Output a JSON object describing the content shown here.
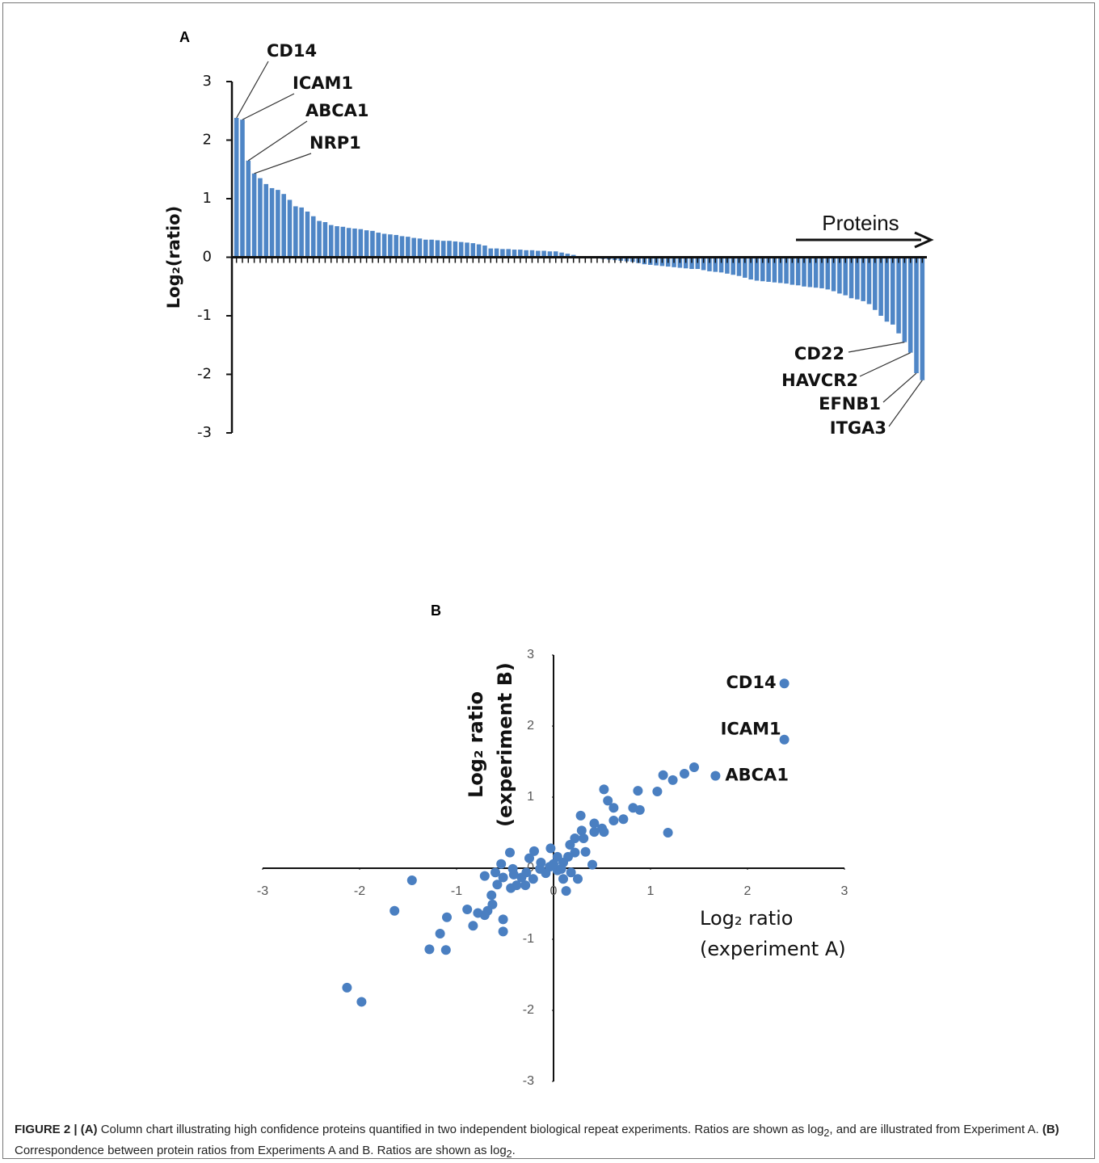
{
  "chart_data": [
    {
      "type": "bar",
      "panel": "A",
      "ylabel": "Log₂(ratio)",
      "axis_note": "Proteins",
      "color": "#4f86c6",
      "ylim": [
        -3,
        3
      ],
      "yticks": [
        -3,
        -2,
        -1,
        0,
        1,
        2,
        3
      ],
      "annotations": [
        "CD14",
        "ICAM1",
        "ABCA1",
        "NRP1",
        "CD22",
        "HAVCR2",
        "EFNB1",
        "ITGA3"
      ],
      "values": [
        2.38,
        2.35,
        1.65,
        1.43,
        1.35,
        1.25,
        1.18,
        1.15,
        1.08,
        0.98,
        0.87,
        0.85,
        0.78,
        0.7,
        0.62,
        0.6,
        0.55,
        0.53,
        0.52,
        0.5,
        0.49,
        0.48,
        0.46,
        0.45,
        0.42,
        0.4,
        0.39,
        0.38,
        0.36,
        0.35,
        0.33,
        0.32,
        0.3,
        0.3,
        0.29,
        0.28,
        0.28,
        0.27,
        0.26,
        0.25,
        0.24,
        0.22,
        0.2,
        0.15,
        0.15,
        0.14,
        0.14,
        0.13,
        0.13,
        0.12,
        0.12,
        0.11,
        0.11,
        0.1,
        0.1,
        0.08,
        0.06,
        0.04,
        0.02,
        0.01,
        -0.01,
        -0.02,
        -0.03,
        -0.04,
        -0.05,
        -0.06,
        -0.07,
        -0.08,
        -0.1,
        -0.12,
        -0.13,
        -0.14,
        -0.15,
        -0.16,
        -0.17,
        -0.18,
        -0.19,
        -0.2,
        -0.2,
        -0.22,
        -0.24,
        -0.25,
        -0.26,
        -0.28,
        -0.3,
        -0.32,
        -0.35,
        -0.38,
        -0.4,
        -0.41,
        -0.42,
        -0.43,
        -0.44,
        -0.45,
        -0.47,
        -0.48,
        -0.5,
        -0.51,
        -0.52,
        -0.53,
        -0.55,
        -0.58,
        -0.62,
        -0.65,
        -0.7,
        -0.72,
        -0.75,
        -0.8,
        -0.9,
        -1.0,
        -1.1,
        -1.15,
        -1.3,
        -1.45,
        -1.63,
        -1.98,
        -2.1
      ]
    },
    {
      "type": "scatter",
      "panel": "B",
      "color": "#4a7fc1",
      "xlabel": [
        "Log₂ ratio",
        "(experiment A)"
      ],
      "ylabel": [
        "Log₂ ratio",
        "(experiment B)"
      ],
      "xlim": [
        -3,
        3
      ],
      "ylim": [
        -3,
        3
      ],
      "xticks": [
        -3,
        -2,
        -1,
        0,
        1,
        2,
        3
      ],
      "yticks": [
        -3,
        -2,
        -1,
        0,
        1,
        2,
        3
      ],
      "annotations": [
        "CD14",
        "ICAM1",
        "ABCA1"
      ],
      "x": [
        2.38,
        2.38,
        1.67,
        1.45,
        1.35,
        1.23,
        1.13,
        1.07,
        0.87,
        0.82,
        0.89,
        1.18,
        0.52,
        0.56,
        0.62,
        0.72,
        0.62,
        0.5,
        0.52,
        0.42,
        0.42,
        0.28,
        0.29,
        0.31,
        0.22,
        0.17,
        0.33,
        0.22,
        0.15,
        0.1,
        0.4,
        0.25,
        0.13,
        0.1,
        0.04,
        -0.03,
        -0.04,
        -0.08,
        -0.13,
        -0.14,
        -0.2,
        -0.21,
        -0.28,
        -0.29,
        -0.33,
        -0.42,
        -0.41,
        -0.44,
        -0.54,
        -0.52,
        -0.58,
        -0.64,
        -0.63,
        -0.45,
        -0.71,
        -0.6,
        -0.68,
        -0.71,
        -0.78,
        -0.89,
        -0.83,
        -0.52,
        -0.52,
        -1.1,
        -1.17,
        -1.28,
        -1.11,
        -1.46,
        -1.64,
        -2.13,
        -1.98,
        0.04,
        0,
        0.08,
        0.18,
        -0.38,
        -0.25
      ],
      "y": [
        2.6,
        1.81,
        1.3,
        1.42,
        1.33,
        1.24,
        1.31,
        1.08,
        1.09,
        0.85,
        0.82,
        0.5,
        1.11,
        0.95,
        0.85,
        0.69,
        0.67,
        0.56,
        0.51,
        0.63,
        0.51,
        0.74,
        0.53,
        0.42,
        0.42,
        0.33,
        0.23,
        0.22,
        0.16,
        0.08,
        0.05,
        -0.15,
        -0.32,
        -0.15,
        -0.03,
        0.28,
        0.02,
        -0.07,
        0.08,
        -0.01,
        0.24,
        -0.15,
        -0.06,
        -0.24,
        -0.13,
        -0.01,
        -0.09,
        -0.28,
        0.06,
        -0.13,
        -0.23,
        -0.38,
        -0.51,
        0.22,
        -0.11,
        -0.06,
        -0.6,
        -0.66,
        -0.63,
        -0.58,
        -0.81,
        -0.72,
        -0.89,
        -0.69,
        -0.92,
        -1.14,
        -1.15,
        -0.17,
        -0.6,
        -1.68,
        -1.88,
        0.16,
        0.06,
        -0.01,
        -0.06,
        -0.24,
        0.14
      ]
    }
  ],
  "caption": [
    "FIGURE 2 | (A)",
    " Column chart illustrating high confidence proteins quantified in two independent biological repeat experiments. Ratios are shown as log",
    "2",
    ", and are illustrated from Experiment A. ",
    "(B)",
    " Correspondence between protein ratios from Experiments A and B. Ratios are shown as log",
    "2",
    "."
  ]
}
